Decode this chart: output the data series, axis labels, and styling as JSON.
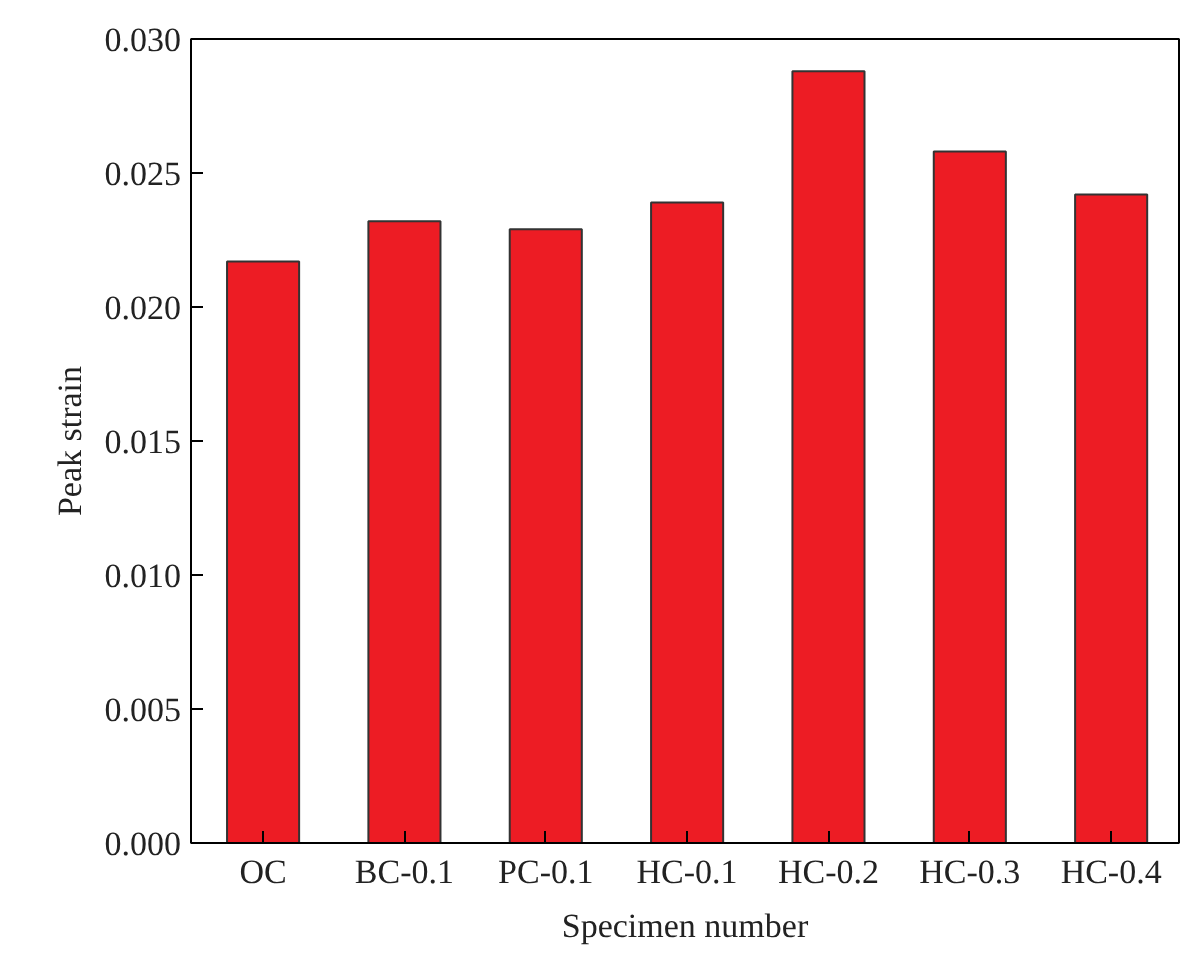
{
  "chart_data": {
    "type": "bar",
    "xlabel": "Specimen number",
    "ylabel": "Peak strain",
    "categories": [
      "OC",
      "BC-0.1",
      "PC-0.1",
      "HC-0.1",
      "HC-0.2",
      "HC-0.3",
      "HC-0.4"
    ],
    "values": [
      0.0217,
      0.0232,
      0.0229,
      0.0239,
      0.0288,
      0.0258,
      0.0242
    ],
    "color": "#ed1c24",
    "ylim": [
      0,
      0.03
    ],
    "yticks": [
      {
        "value": 0,
        "label": "0.000"
      },
      {
        "value": 0.005,
        "label": "0.005"
      },
      {
        "value": 0.01,
        "label": "0.010"
      },
      {
        "value": 0.015,
        "label": "0.015"
      },
      {
        "value": 0.02,
        "label": "0.020"
      },
      {
        "value": 0.025,
        "label": "0.025"
      },
      {
        "value": 0.03,
        "label": "0.030"
      }
    ],
    "grid": false
  }
}
